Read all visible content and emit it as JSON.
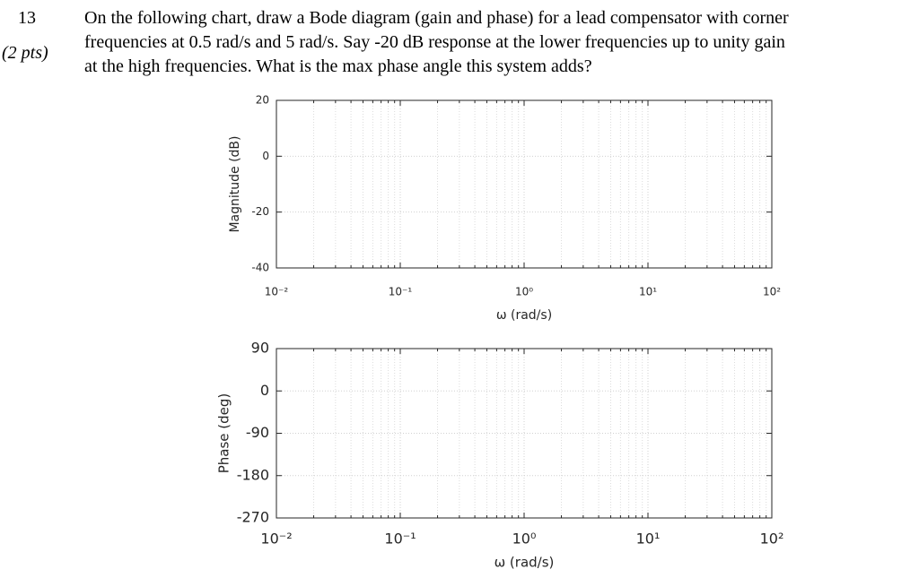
{
  "question": {
    "number": "13",
    "points": "(2 pts)",
    "lines": [
      "On the following chart, draw a Bode diagram (gain and phase) for a lead compensator with corner",
      "frequencies at 0.5 rad/s and 5 rad/s. Say -20 dB response at the lower frequencies up to unity gain",
      "at the high frequencies. What is the max phase angle this system adds?"
    ]
  },
  "chart_data": [
    {
      "type": "line",
      "ylabel": "Magnitude (dB)",
      "xlabel": "ω (rad/s)",
      "log_x": true,
      "grid": true,
      "minor_grid": true,
      "xlim": [
        0.01,
        100
      ],
      "xticks": [
        {
          "value": 0.01,
          "label": "10⁻²"
        },
        {
          "value": 0.1,
          "label": "10⁻¹"
        },
        {
          "value": 1,
          "label": "10⁰"
        },
        {
          "value": 10,
          "label": "10¹"
        },
        {
          "value": 100,
          "label": "10²"
        }
      ],
      "ylim": [
        -40,
        20
      ],
      "yticks": [
        -40,
        -20,
        0,
        20
      ]
    },
    {
      "type": "line",
      "ylabel": "Phase (deg)",
      "xlabel": "ω (rad/s)",
      "log_x": true,
      "grid": true,
      "minor_grid": true,
      "xlim": [
        0.01,
        100
      ],
      "xticks": [
        {
          "value": 0.01,
          "label": "10⁻²"
        },
        {
          "value": 0.1,
          "label": "10⁻¹"
        },
        {
          "value": 1,
          "label": "10⁰"
        },
        {
          "value": 10,
          "label": "10¹"
        },
        {
          "value": 100,
          "label": "10²"
        }
      ],
      "ylim": [
        -270,
        90
      ],
      "yticks": [
        -270,
        -180,
        -90,
        0,
        90
      ]
    }
  ]
}
